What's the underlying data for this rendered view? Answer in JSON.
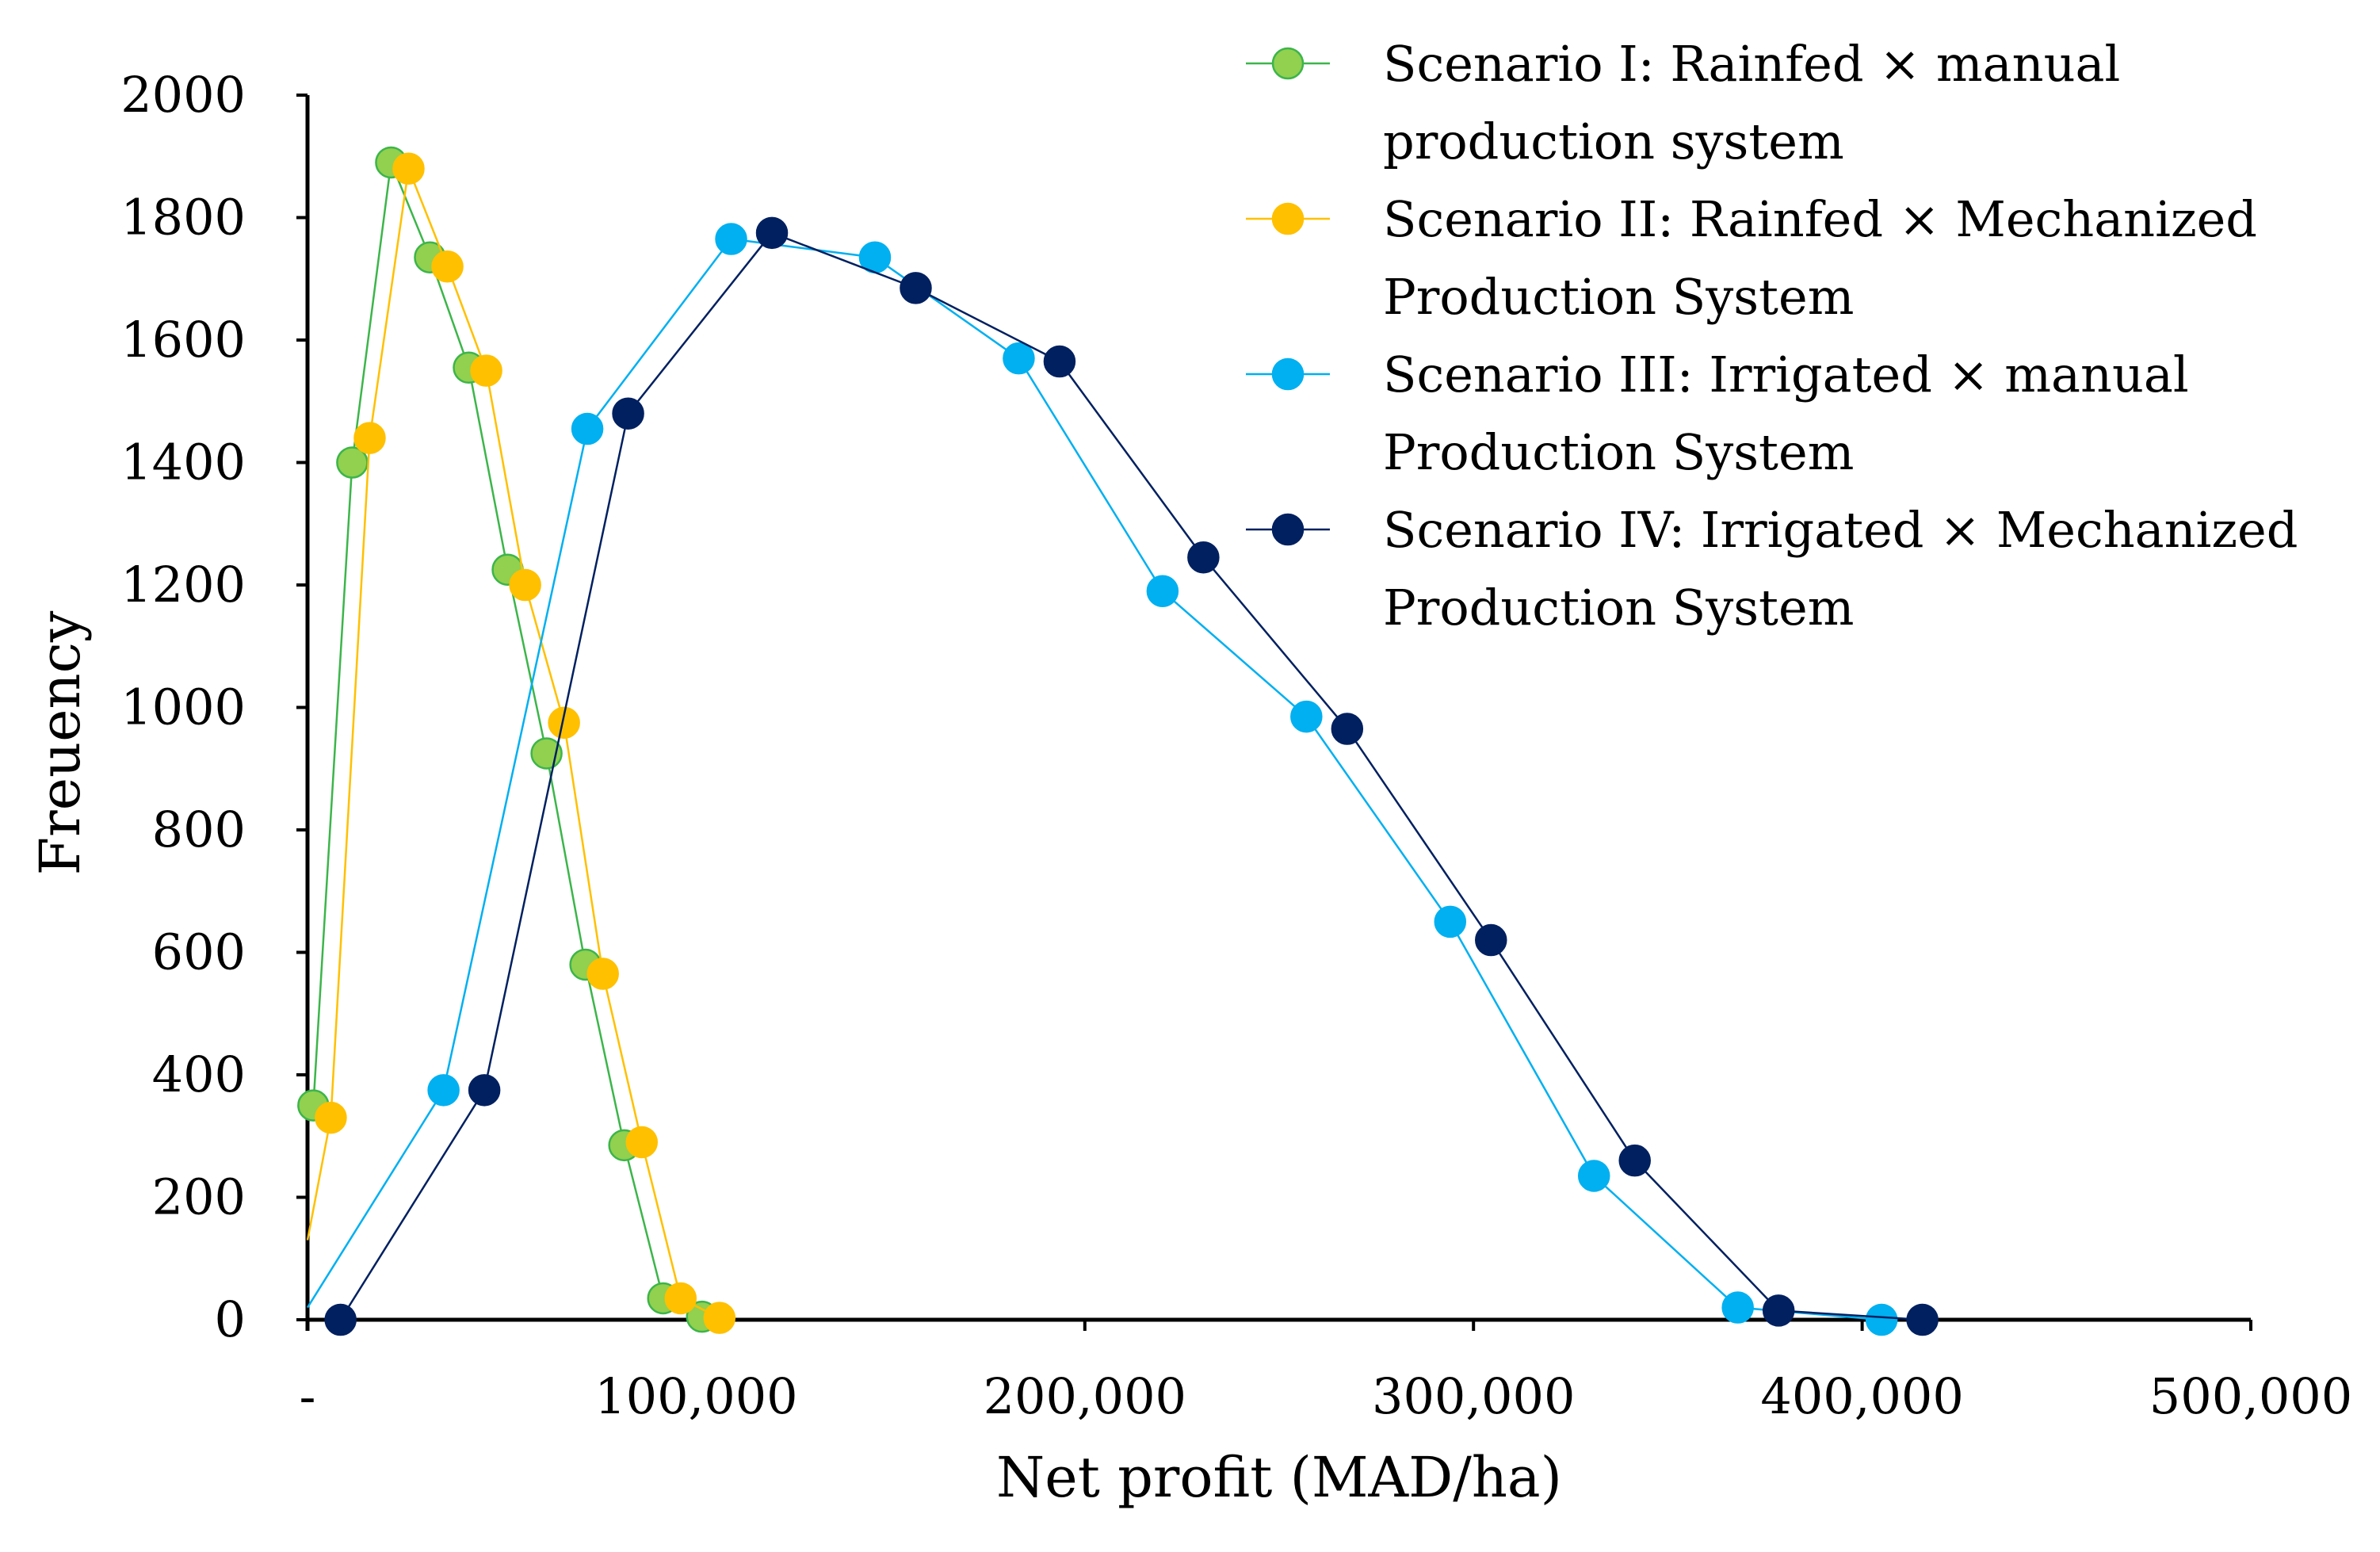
{
  "chart_data": {
    "type": "line",
    "title": "",
    "xlabel": "Net profit (MAD/ha)",
    "ylabel": "Freuency",
    "xlim": [
      0,
      500000
    ],
    "ylim": [
      0,
      2000
    ],
    "x_ticks": [
      0,
      100000,
      200000,
      300000,
      400000,
      500000
    ],
    "x_tick_labels": [
      "-",
      "100,000",
      "200,000",
      "300,000",
      "400,000",
      "500,000"
    ],
    "y_ticks": [
      0,
      200,
      400,
      600,
      800,
      1000,
      1200,
      1400,
      1600,
      1800,
      2000
    ],
    "y_tick_labels": [
      "0",
      "200",
      "400",
      "600",
      "800",
      "1000",
      "1200",
      "1400",
      "1600",
      "1800",
      "2000"
    ],
    "grid": false,
    "legend_position": "top-right",
    "series": [
      {
        "name": "Scenario I: Rainfed × manual production system",
        "legend_lines": [
          "Scenario I: Rainfed × manual",
          "production system"
        ],
        "line_color": "#3cb54a",
        "marker_fill": "#92d050",
        "marker_edge": "#3cb54a",
        "start": [
          0,
          330
        ],
        "x": [
          1500,
          11500,
          21500,
          31500,
          41500,
          51500,
          61500,
          71500,
          81500,
          91500,
          101500
        ],
        "y": [
          350,
          1400,
          1890,
          1735,
          1555,
          1225,
          925,
          580,
          285,
          35,
          5
        ]
      },
      {
        "name": "Scenario II: Rainfed × Mechanized Production System",
        "legend_lines": [
          "Scenario II: Rainfed × Mechanized",
          "Production System"
        ],
        "line_color": "#ffc000",
        "marker_fill": "#ffc000",
        "marker_edge": "#ffc000",
        "start": [
          0,
          130
        ],
        "x": [
          6000,
          16000,
          26000,
          36000,
          46000,
          56000,
          66000,
          76000,
          86000,
          96000,
          106000
        ],
        "y": [
          330,
          1440,
          1880,
          1720,
          1550,
          1200,
          975,
          565,
          290,
          35,
          3
        ]
      },
      {
        "name": "Scenario III: Irrigated × manual Production System",
        "legend_lines": [
          "Scenario III: Irrigated × manual",
          "Production System"
        ],
        "line_color": "#00b0f0",
        "marker_fill": "#00b0f0",
        "marker_edge": "#00b0f0",
        "start": [
          0,
          20
        ],
        "x": [
          35000,
          72000,
          109000,
          146000,
          183000,
          220000,
          257000,
          294000,
          331000,
          368000,
          405000
        ],
        "y": [
          375,
          1455,
          1765,
          1735,
          1570,
          1190,
          985,
          650,
          235,
          20,
          0
        ]
      },
      {
        "name": "Scenario IV: Irrigated × Mechanized Production System",
        "legend_lines": [
          "Scenario IV: Irrigated × Mechanized",
          "Production System"
        ],
        "line_color": "#002060",
        "marker_fill": "#002060",
        "marker_edge": "#002060",
        "start": null,
        "x": [
          8500,
          45500,
          82500,
          119500,
          156500,
          193500,
          230500,
          267500,
          304500,
          341500,
          378500,
          415500
        ],
        "y": [
          0,
          375,
          1480,
          1775,
          1685,
          1565,
          1245,
          965,
          620,
          260,
          15,
          0
        ]
      }
    ]
  }
}
